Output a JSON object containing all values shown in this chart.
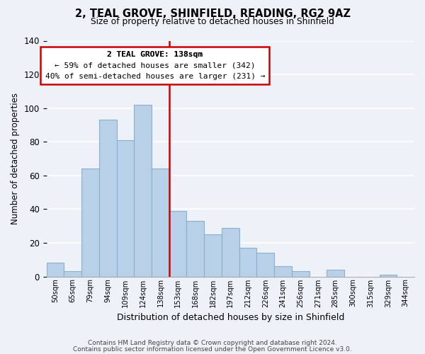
{
  "title": "2, TEAL GROVE, SHINFIELD, READING, RG2 9AZ",
  "subtitle": "Size of property relative to detached houses in Shinfield",
  "xlabel": "Distribution of detached houses by size in Shinfield",
  "ylabel": "Number of detached properties",
  "footer_line1": "Contains HM Land Registry data © Crown copyright and database right 2024.",
  "footer_line2": "Contains public sector information licensed under the Open Government Licence v3.0.",
  "bar_labels": [
    "50sqm",
    "65sqm",
    "79sqm",
    "94sqm",
    "109sqm",
    "124sqm",
    "138sqm",
    "153sqm",
    "168sqm",
    "182sqm",
    "197sqm",
    "212sqm",
    "226sqm",
    "241sqm",
    "256sqm",
    "271sqm",
    "285sqm",
    "300sqm",
    "315sqm",
    "329sqm",
    "344sqm"
  ],
  "bar_values": [
    8,
    3,
    64,
    93,
    81,
    102,
    64,
    39,
    33,
    25,
    29,
    17,
    14,
    6,
    3,
    0,
    4,
    0,
    0,
    1,
    0
  ],
  "bar_color": "#b8d0e8",
  "bar_edge_color": "#8ab0cc",
  "highlight_index": 6,
  "highlight_line_color": "#cc0000",
  "annotation_title": "2 TEAL GROVE: 138sqm",
  "annotation_line1": "← 59% of detached houses are smaller (342)",
  "annotation_line2": "40% of semi-detached houses are larger (231) →",
  "annotation_box_color": "#ffffff",
  "annotation_box_edge_color": "#cc0000",
  "ylim": [
    0,
    140
  ],
  "yticks": [
    0,
    20,
    40,
    60,
    80,
    100,
    120,
    140
  ],
  "background_color": "#eef2f8"
}
